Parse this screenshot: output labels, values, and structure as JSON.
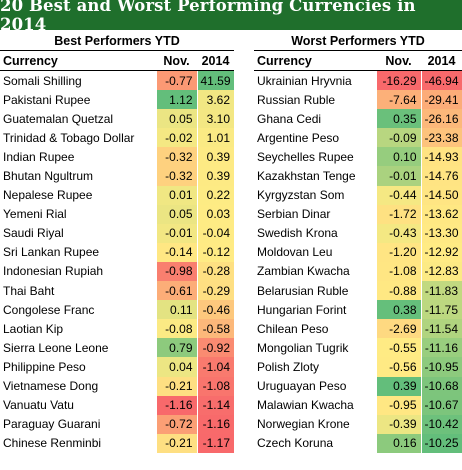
{
  "title": "20 Best and Worst Performing Currencies in 2014",
  "colors": {
    "title_bg": "#1f6f2c",
    "scale_low": "#f8696b",
    "scale_mid": "#ffeb84",
    "scale_high": "#63be7b"
  },
  "chart_data": [
    {
      "type": "table",
      "section_title": "Best Performers YTD",
      "columns": [
        "Currency",
        "Nov.",
        "2014"
      ],
      "rows": [
        {
          "currency": "Somali Shilling",
          "nov": -0.77,
          "y2014": 41.59
        },
        {
          "currency": "Pakistani Rupee",
          "nov": 1.12,
          "y2014": 3.62
        },
        {
          "currency": "Guatemalan Quetzal",
          "nov": 0.05,
          "y2014": 3.1
        },
        {
          "currency": "Trinidad & Tobago Dollar",
          "nov": -0.02,
          "y2014": 1.01
        },
        {
          "currency": "Indian Rupee",
          "nov": -0.32,
          "y2014": 0.39
        },
        {
          "currency": "Bhutan Ngultrum",
          "nov": -0.32,
          "y2014": 0.39
        },
        {
          "currency": "Nepalese Rupee",
          "nov": 0.01,
          "y2014": 0.22
        },
        {
          "currency": "Yemeni Rial",
          "nov": 0.05,
          "y2014": 0.03
        },
        {
          "currency": "Saudi Riyal",
          "nov": -0.01,
          "y2014": -0.04
        },
        {
          "currency": "Sri Lankan Rupee",
          "nov": -0.14,
          "y2014": -0.12
        },
        {
          "currency": "Indonesian Rupiah",
          "nov": -0.98,
          "y2014": -0.28
        },
        {
          "currency": "Thai Baht",
          "nov": -0.61,
          "y2014": -0.29
        },
        {
          "currency": "Congolese Franc",
          "nov": 0.11,
          "y2014": -0.46
        },
        {
          "currency": "Laotian Kip",
          "nov": -0.08,
          "y2014": -0.58
        },
        {
          "currency": "Sierra Leone Leone",
          "nov": 0.79,
          "y2014": -0.92
        },
        {
          "currency": "Philippine Peso",
          "nov": 0.04,
          "y2014": -1.04
        },
        {
          "currency": "Vietnamese Dong",
          "nov": -0.21,
          "y2014": -1.08
        },
        {
          "currency": "Vanuatu Vatu",
          "nov": -1.16,
          "y2014": -1.14
        },
        {
          "currency": "Paraguay Guarani",
          "nov": -0.72,
          "y2014": -1.16
        },
        {
          "currency": "Chinese Renminbi",
          "nov": -0.21,
          "y2014": -1.17
        }
      ]
    },
    {
      "type": "table",
      "section_title": "Worst Performers YTD",
      "columns": [
        "Currency",
        "Nov.",
        "2014"
      ],
      "rows": [
        {
          "currency": "Ukrainian Hryvnia",
          "nov": -16.29,
          "y2014": -46.94
        },
        {
          "currency": "Russian Ruble",
          "nov": -7.64,
          "y2014": -29.41
        },
        {
          "currency": "Ghana Cedi",
          "nov": 0.35,
          "y2014": -26.16
        },
        {
          "currency": "Argentine Peso",
          "nov": -0.09,
          "y2014": -23.38
        },
        {
          "currency": "Seychelles Rupee",
          "nov": 0.1,
          "y2014": -14.93
        },
        {
          "currency": "Kazakhstan Tenge",
          "nov": -0.01,
          "y2014": -14.76
        },
        {
          "currency": "Kyrgyzstan Som",
          "nov": -0.44,
          "y2014": -14.5
        },
        {
          "currency": "Serbian Dinar",
          "nov": -1.72,
          "y2014": -13.62
        },
        {
          "currency": "Swedish Krona",
          "nov": -0.43,
          "y2014": -13.3
        },
        {
          "currency": "Moldovan Leu",
          "nov": -1.2,
          "y2014": -12.92
        },
        {
          "currency": "Zambian Kwacha",
          "nov": -1.08,
          "y2014": -12.83
        },
        {
          "currency": "Belarusian Ruble",
          "nov": -0.88,
          "y2014": -11.83
        },
        {
          "currency": "Hungarian Forint",
          "nov": 0.38,
          "y2014": -11.75
        },
        {
          "currency": "Chilean Peso",
          "nov": -2.69,
          "y2014": -11.54
        },
        {
          "currency": "Mongolian Tugrik",
          "nov": -0.55,
          "y2014": -11.16
        },
        {
          "currency": "Polish Zloty",
          "nov": -0.56,
          "y2014": -10.95
        },
        {
          "currency": "Uruguayan Peso",
          "nov": 0.39,
          "y2014": -10.68
        },
        {
          "currency": "Malawian Kwacha",
          "nov": -0.95,
          "y2014": -10.67
        },
        {
          "currency": "Norwegian Krone",
          "nov": -0.39,
          "y2014": -10.42
        },
        {
          "currency": "Czech Koruna",
          "nov": 0.16,
          "y2014": -10.25
        }
      ]
    }
  ]
}
